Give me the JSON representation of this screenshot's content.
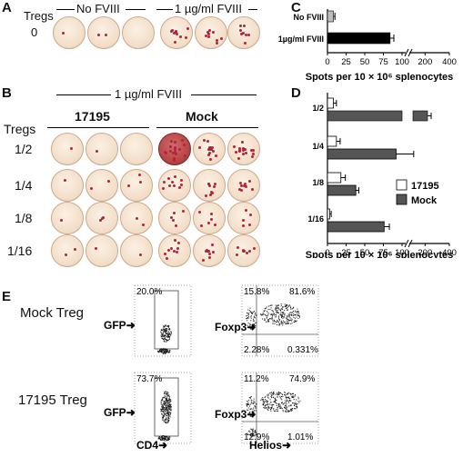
{
  "panel_a": {
    "letter": "A",
    "row_label_1": "Tregs",
    "row_label_2": "0",
    "col_no": "No FVIII",
    "col_yes": "1 µg/ml FVIII"
  },
  "panel_b": {
    "letter": "B",
    "header": "1 µg/ml FVIII",
    "group1": "17195",
    "group2": "Mock",
    "row_title": "Tregs",
    "rows": [
      "1/2",
      "1/4",
      "1/8",
      "1/16"
    ]
  },
  "panel_e": {
    "letter": "E",
    "row1": "Mock Treg",
    "row2": "17195 Treg",
    "gfp": "GFP",
    "foxp3": "Foxp3",
    "cd4": "CD4",
    "helios": "Helios",
    "mock_gfp_pct": "20.0%",
    "t17195_gfp_pct": "73.7%",
    "mock_q": [
      "15.8%",
      "81.6%",
      "2.28%",
      "0.331%"
    ],
    "t17195_q": [
      "11.2%",
      "74.9%",
      "12.9%",
      "1.01%"
    ]
  },
  "chart_data": [
    {
      "type": "bar",
      "panel": "C",
      "categories": [
        "No FVIII",
        "1µg/ml FVIII"
      ],
      "values": [
        8,
        84
      ],
      "errors": [
        2,
        5
      ],
      "colors": [
        "#bdbdbd",
        "#000000"
      ],
      "xlabel": "Spots per 10 × 10⁶ splenocytes",
      "ticks": [
        "0",
        "25",
        "50",
        "75",
        "100",
        "200",
        "400"
      ]
    },
    {
      "type": "bar",
      "panel": "D",
      "categories": [
        "1/2",
        "1/4",
        "1/8",
        "1/16"
      ],
      "series": [
        {
          "name": "17195",
          "values": [
            8,
            12,
            18,
            3
          ],
          "errors": [
            4,
            5,
            6,
            2
          ],
          "color": "#ffffff"
        },
        {
          "name": "Mock",
          "values": [
            220,
            92,
            38,
            76
          ],
          "errors": [
            30,
            14,
            4,
            7
          ],
          "color": "#555555"
        }
      ],
      "xlabel": "Spots per 10 × 10⁶ splenocytes",
      "ticks": [
        "0",
        "25",
        "50",
        "75",
        "100",
        "200",
        "400"
      ]
    }
  ]
}
